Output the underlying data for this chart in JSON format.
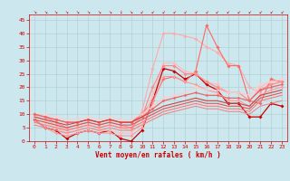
{
  "title": "",
  "xlabel": "Vent moyen/en rafales ( km/h )",
  "ylabel": "",
  "xlim": [
    -0.5,
    23.5
  ],
  "ylim": [
    0,
    47
  ],
  "yticks": [
    0,
    5,
    10,
    15,
    20,
    25,
    30,
    35,
    40,
    45
  ],
  "xticks": [
    0,
    1,
    2,
    3,
    4,
    5,
    6,
    7,
    8,
    9,
    10,
    11,
    12,
    13,
    14,
    15,
    16,
    17,
    18,
    19,
    20,
    21,
    22,
    23
  ],
  "bg_color": "#cce8ee",
  "grid_color": "#aacccc",
  "lines": [
    {
      "x": [
        0,
        1,
        2,
        3,
        4,
        5,
        6,
        7,
        8,
        9,
        10,
        11,
        12,
        13,
        14,
        15,
        16,
        17,
        18,
        19,
        20,
        21,
        22,
        23
      ],
      "y": [
        8,
        5,
        4,
        1,
        3,
        4,
        3,
        4,
        1,
        0,
        4,
        15,
        27,
        26,
        23,
        25,
        21,
        19,
        14,
        14,
        9,
        9,
        14,
        13
      ],
      "color": "#cc0000",
      "lw": 0.9,
      "marker": "D",
      "ms": 1.8
    },
    {
      "x": [
        0,
        1,
        2,
        3,
        4,
        5,
        6,
        7,
        8,
        9,
        10,
        11,
        12,
        13,
        14,
        15,
        16,
        17,
        18,
        19,
        20,
        21,
        22,
        23
      ],
      "y": [
        9,
        8,
        6,
        4,
        5,
        6,
        5,
        6,
        5,
        4,
        11,
        27,
        40,
        40,
        39,
        38,
        35,
        33,
        29,
        28,
        20,
        18,
        22,
        22
      ],
      "color": "#ffaaaa",
      "lw": 0.8,
      "marker": "D",
      "ms": 1.8
    },
    {
      "x": [
        0,
        1,
        2,
        3,
        4,
        5,
        6,
        7,
        8,
        9,
        10,
        11,
        12,
        13,
        14,
        15,
        16,
        17,
        18,
        19,
        20,
        21,
        22,
        23
      ],
      "y": [
        10,
        9,
        8,
        7,
        7,
        8,
        7,
        8,
        7,
        7,
        10,
        15,
        23,
        24,
        22,
        26,
        43,
        35,
        28,
        28,
        15,
        14,
        23,
        22
      ],
      "color": "#ff6666",
      "lw": 0.8,
      "marker": "D",
      "ms": 1.8
    },
    {
      "x": [
        0,
        1,
        2,
        3,
        4,
        5,
        6,
        7,
        8,
        9,
        10,
        11,
        12,
        13,
        14,
        15,
        16,
        17,
        18,
        19,
        20,
        21,
        22,
        23
      ],
      "y": [
        10,
        7,
        5,
        3,
        4,
        5,
        4,
        4,
        3,
        3,
        7,
        17,
        29,
        29,
        26,
        25,
        22,
        21,
        18,
        18,
        15,
        20,
        22,
        22
      ],
      "color": "#ffbbbb",
      "lw": 0.8,
      "marker": "D",
      "ms": 1.8
    },
    {
      "x": [
        0,
        1,
        2,
        3,
        4,
        5,
        6,
        7,
        8,
        9,
        10,
        11,
        12,
        13,
        14,
        15,
        16,
        17,
        18,
        19,
        20,
        21,
        22,
        23
      ],
      "y": [
        10,
        9,
        7,
        5,
        6,
        7,
        6,
        7,
        6,
        5,
        9,
        20,
        28,
        28,
        25,
        25,
        22,
        20,
        18,
        18,
        15,
        19,
        21,
        22
      ],
      "color": "#ff8888",
      "lw": 0.8,
      "marker": "D",
      "ms": 1.8
    },
    {
      "x": [
        0,
        1,
        2,
        3,
        4,
        5,
        6,
        7,
        8,
        9,
        10,
        11,
        12,
        13,
        14,
        15,
        16,
        17,
        18,
        19,
        20,
        21,
        22,
        23
      ],
      "y": [
        8,
        5,
        3,
        2,
        3,
        4,
        3,
        3,
        2,
        2,
        5,
        14,
        24,
        24,
        22,
        21,
        19,
        18,
        15,
        15,
        13,
        17,
        19,
        20
      ],
      "color": "#ff9999",
      "lw": 0.8,
      "marker": "D",
      "ms": 1.5
    },
    {
      "x": [
        0,
        1,
        2,
        3,
        4,
        5,
        6,
        7,
        8,
        9,
        10,
        11,
        12,
        13,
        14,
        15,
        16,
        17,
        18,
        19,
        20,
        21,
        22,
        23
      ],
      "y": [
        9,
        10,
        9,
        8,
        8,
        9,
        8,
        9,
        8,
        8,
        10,
        13,
        16,
        17,
        18,
        20,
        19,
        19,
        18,
        18,
        17,
        21,
        22,
        23
      ],
      "color": "#ffcccc",
      "lw": 0.8,
      "marker": "D",
      "ms": 1.5
    },
    {
      "x": [
        0,
        1,
        2,
        3,
        4,
        5,
        6,
        7,
        8,
        9,
        10,
        11,
        12,
        13,
        14,
        15,
        16,
        17,
        18,
        19,
        20,
        21,
        22,
        23
      ],
      "y": [
        10,
        9,
        8,
        7,
        7,
        8,
        7,
        8,
        7,
        7,
        9,
        12,
        15,
        16,
        17,
        18,
        17,
        17,
        16,
        16,
        15,
        19,
        20,
        21
      ],
      "color": "#ee6666",
      "lw": 0.9,
      "marker": "D",
      "ms": 1.5
    },
    {
      "x": [
        0,
        1,
        2,
        3,
        4,
        5,
        6,
        7,
        8,
        9,
        10,
        11,
        12,
        13,
        14,
        15,
        16,
        17,
        18,
        19,
        20,
        21,
        22,
        23
      ],
      "y": [
        8,
        7,
        6,
        5,
        6,
        7,
        6,
        7,
        6,
        6,
        8,
        10,
        12,
        13,
        14,
        15,
        14,
        14,
        13,
        13,
        12,
        16,
        17,
        18
      ],
      "color": "#dd5555",
      "lw": 0.8,
      "marker": null,
      "ms": 0
    },
    {
      "x": [
        0,
        1,
        2,
        3,
        4,
        5,
        6,
        7,
        8,
        9,
        10,
        11,
        12,
        13,
        14,
        15,
        16,
        17,
        18,
        19,
        20,
        21,
        22,
        23
      ],
      "y": [
        9,
        8,
        7,
        6,
        7,
        8,
        7,
        8,
        7,
        7,
        9,
        11,
        13,
        14,
        15,
        16,
        15,
        15,
        14,
        14,
        13,
        17,
        18,
        19
      ],
      "color": "#cc4444",
      "lw": 0.8,
      "marker": null,
      "ms": 0
    },
    {
      "x": [
        0,
        1,
        2,
        3,
        4,
        5,
        6,
        7,
        8,
        9,
        10,
        11,
        12,
        13,
        14,
        15,
        16,
        17,
        18,
        19,
        20,
        21,
        22,
        23
      ],
      "y": [
        7,
        6,
        5,
        4,
        5,
        6,
        5,
        6,
        5,
        5,
        7,
        9,
        11,
        12,
        13,
        14,
        13,
        13,
        12,
        12,
        11,
        15,
        16,
        17
      ],
      "color": "#ff7777",
      "lw": 0.8,
      "marker": null,
      "ms": 0
    },
    {
      "x": [
        0,
        1,
        2,
        3,
        4,
        5,
        6,
        7,
        8,
        9,
        10,
        11,
        12,
        13,
        14,
        15,
        16,
        17,
        18,
        19,
        20,
        21,
        22,
        23
      ],
      "y": [
        6,
        5,
        4,
        3,
        4,
        5,
        4,
        5,
        4,
        4,
        6,
        8,
        10,
        11,
        12,
        13,
        12,
        12,
        11,
        11,
        10,
        13,
        14,
        15
      ],
      "color": "#ee8888",
      "lw": 0.8,
      "marker": null,
      "ms": 0
    }
  ],
  "arrow_color": "#cc0000",
  "tick_fontsize": 4.5,
  "xlabel_fontsize": 5.5,
  "xlabel_color": "#cc0000",
  "tick_color": "#cc0000",
  "arrow_chars": [
    "↘",
    "↘",
    "↘",
    "↘",
    "↘",
    "↘",
    "↘",
    "↘",
    "↓",
    "↘",
    "↙",
    "↙",
    "↙",
    "↙",
    "↙",
    "↙",
    "↙",
    "↙",
    "↙",
    "↙",
    "↙",
    "↙",
    "↙",
    "↙"
  ]
}
